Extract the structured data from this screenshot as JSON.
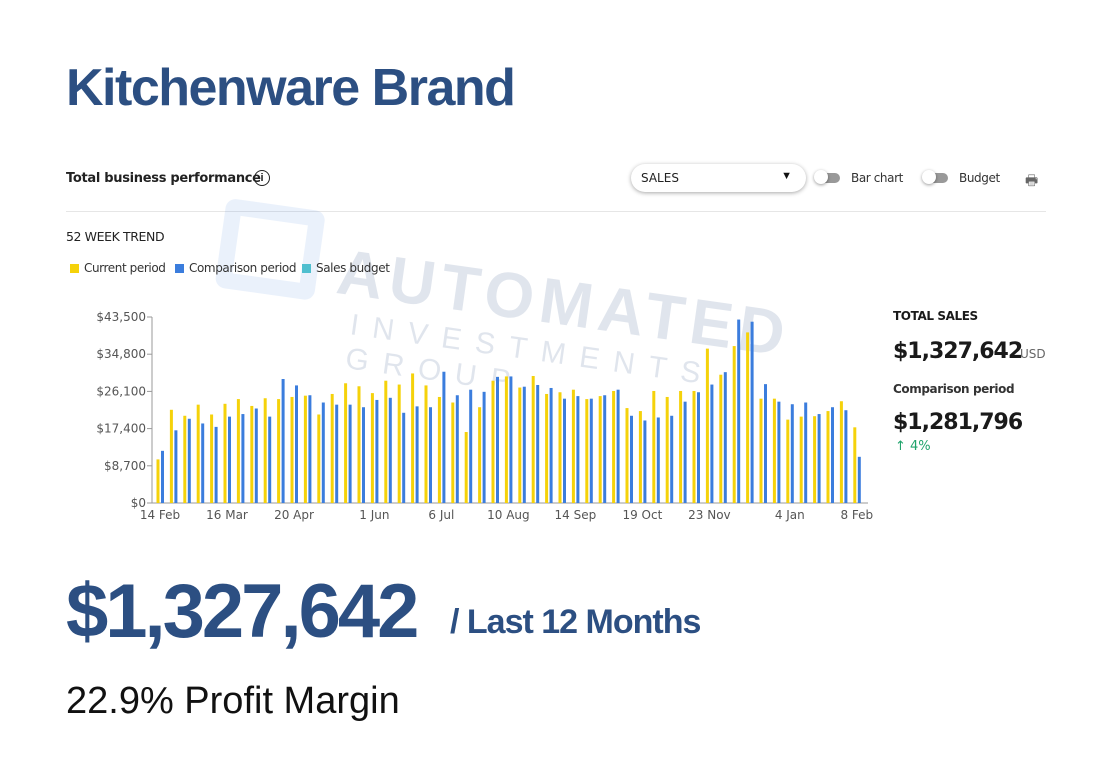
{
  "title": "Kitchenware Brand",
  "panel": {
    "title": "Total business performance",
    "info_icon": "info-icon",
    "metric_select": "SALES",
    "toggle_bar_chart": "Bar chart",
    "toggle_budget": "Budget",
    "print_icon": "print-icon"
  },
  "trend_label": "52 WEEK TREND",
  "legend": [
    {
      "label": "Current period",
      "color": "#f5d20a"
    },
    {
      "label": "Comparison period",
      "color": "#3b7ddd"
    },
    {
      "label": "Sales budget",
      "color": "#4fbfcf"
    }
  ],
  "watermark": {
    "line1": "AUTOMATED",
    "line2": "INVESTMENTS GROUP"
  },
  "summary": {
    "total_sales_label": "TOTAL SALES",
    "total_sales": "$1,327,642",
    "currency": "USD",
    "comparison_label": "Comparison period",
    "comparison_value": "$1,281,796",
    "change": "↑ 4%",
    "change_color": "#1fa36b"
  },
  "headline": {
    "value": "$1,327,642",
    "period": "/ Last 12 Months",
    "margin": "22.9% Profit Margin"
  },
  "chart_data": {
    "type": "bar",
    "title": "52 WEEK TREND",
    "ylim": [
      0,
      43500
    ],
    "yticks": [
      0,
      8700,
      17400,
      26100,
      34800,
      43500
    ],
    "ytick_labels": [
      "$0",
      "$8,700",
      "$17,400",
      "$26,100",
      "$34,800",
      "$43,500"
    ],
    "xtick_labels": [
      {
        "i": 0,
        "label": "14 Feb"
      },
      {
        "i": 5,
        "label": "16 Mar"
      },
      {
        "i": 10,
        "label": "20 Apr"
      },
      {
        "i": 16,
        "label": "1 Jun"
      },
      {
        "i": 21,
        "label": "6 Jul"
      },
      {
        "i": 26,
        "label": "10 Aug"
      },
      {
        "i": 31,
        "label": "14 Sep"
      },
      {
        "i": 36,
        "label": "19 Oct"
      },
      {
        "i": 41,
        "label": "23 Nov"
      },
      {
        "i": 47,
        "label": "4 Jan"
      },
      {
        "i": 52,
        "label": "8 Feb"
      }
    ],
    "series": [
      {
        "name": "Current period",
        "color": "#f5d20a",
        "values": [
          10200,
          21800,
          20400,
          23000,
          20700,
          23200,
          24300,
          22700,
          24500,
          24300,
          24800,
          25100,
          20700,
          25500,
          28000,
          27300,
          25700,
          28600,
          27700,
          30300,
          27500,
          24800,
          23500,
          16600,
          22400,
          28600,
          29600,
          27000,
          29700,
          25500,
          25900,
          26500,
          24300,
          25000,
          26200,
          22200,
          21500,
          26200,
          24800,
          26200,
          26200,
          36100,
          30000,
          36700,
          39900,
          24400,
          24400,
          19500,
          20200,
          20300,
          21500,
          23800,
          17700
        ]
      },
      {
        "name": "Comparison period",
        "color": "#3b7ddd",
        "values": [
          12200,
          17000,
          19700,
          18600,
          17800,
          20200,
          20800,
          22100,
          20200,
          29000,
          27500,
          25200,
          23500,
          23000,
          23000,
          22400,
          24100,
          24600,
          21100,
          22600,
          22400,
          30700,
          25200,
          26500,
          26000,
          29500,
          29600,
          27200,
          27600,
          26900,
          24400,
          25000,
          24400,
          25200,
          26500,
          20400,
          19300,
          20000,
          20400,
          23700,
          25900,
          27700,
          30600,
          42900,
          42400,
          27800,
          23700,
          23100,
          23500,
          20800,
          22400,
          21700,
          10800
        ]
      }
    ],
    "legend_position": "top-left"
  }
}
